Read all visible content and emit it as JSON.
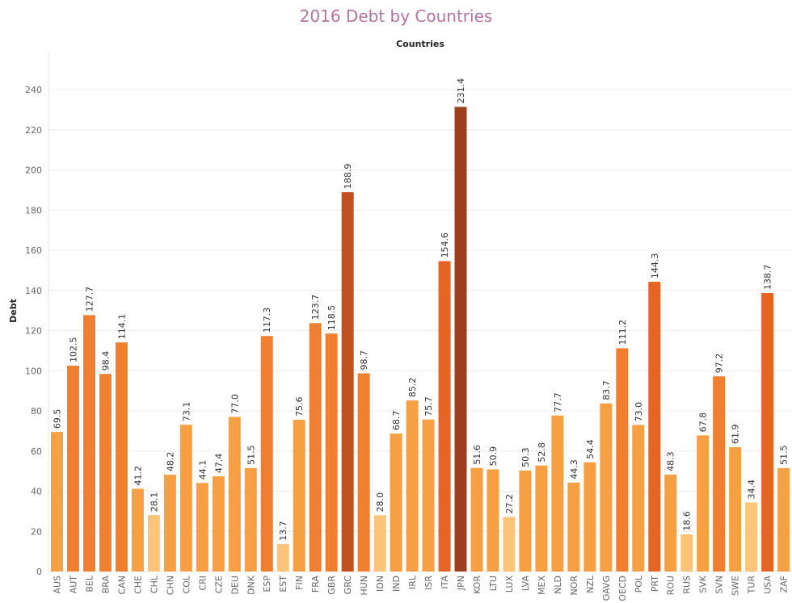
{
  "chart_data": {
    "type": "bar",
    "title": "2016 Debt by Countries",
    "xlabel": "Countries",
    "ylabel": "Debt",
    "ylim": [
      0,
      245
    ],
    "yticks": [
      0,
      20,
      40,
      60,
      80,
      100,
      120,
      140,
      160,
      180,
      200,
      220,
      240
    ],
    "grid": true,
    "legend": "none",
    "color_scale": [
      "#fdc47a",
      "#f6a043",
      "#f08030",
      "#e66424",
      "#c2501e",
      "#9c3f1f"
    ],
    "categories": [
      "AUS",
      "AUT",
      "BEL",
      "BRA",
      "CAN",
      "CHE",
      "CHL",
      "CHN",
      "COL",
      "CRI",
      "CZE",
      "DEU",
      "DNK",
      "ESP",
      "EST",
      "FIN",
      "FRA",
      "GBR",
      "GRC",
      "HUN",
      "IDN",
      "IND",
      "IRL",
      "ISR",
      "ITA",
      "JPN",
      "KOR",
      "LTU",
      "LUX",
      "LVA",
      "MEX",
      "NLD",
      "NOR",
      "NZL",
      "OAVG",
      "OECD",
      "POL",
      "PRT",
      "ROU",
      "RUS",
      "SVK",
      "SVN",
      "SWE",
      "TUR",
      "USA",
      "ZAF"
    ],
    "values": [
      69.5,
      102.5,
      127.7,
      98.4,
      114.1,
      41.2,
      28.1,
      48.2,
      73.1,
      44.1,
      47.4,
      77.0,
      51.5,
      117.3,
      13.7,
      75.6,
      123.7,
      118.5,
      188.9,
      98.7,
      28.0,
      68.7,
      85.2,
      75.7,
      154.6,
      231.4,
      51.6,
      50.9,
      27.2,
      50.3,
      52.8,
      77.7,
      44.3,
      54.4,
      83.7,
      111.2,
      73.0,
      144.3,
      48.3,
      18.6,
      67.8,
      97.2,
      61.9,
      34.4,
      138.7,
      51.5
    ],
    "data_labels": [
      "69.5",
      "102.5",
      "127.7",
      "98.4",
      "114.1",
      "41.2",
      "28.1",
      "48.2",
      "73.1",
      "44.1",
      "47.4",
      "77.0",
      "51.5",
      "117.3",
      "13.7",
      "75.6",
      "123.7",
      "118.5",
      "188.9",
      "98.7",
      "28.0",
      "68.7",
      "85.2",
      "75.7",
      "154.6",
      "231.4",
      "51.6",
      "50.9",
      "27.2",
      "50.3",
      "52.8",
      "77.7",
      "44.3",
      "54.4",
      "83.7",
      "111.2",
      "73.0",
      "144.3",
      "48.3",
      "18.6",
      "67.8",
      "97.2",
      "61.9",
      "34.4",
      "138.7",
      "51.5"
    ]
  }
}
